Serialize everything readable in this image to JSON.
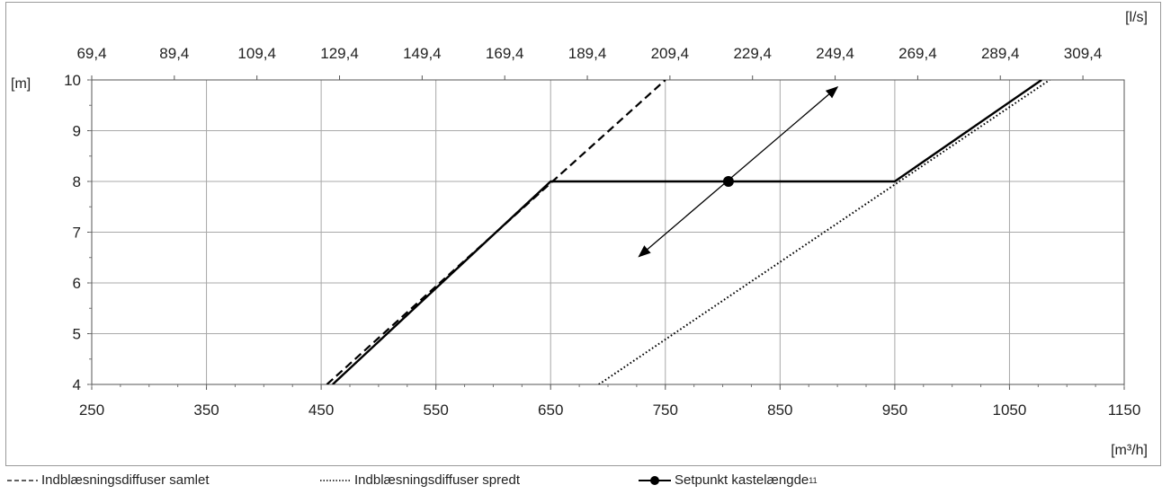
{
  "chart_data": {
    "type": "line",
    "x_axis_bottom": {
      "unit_label": "[m³/h]",
      "range": [
        250,
        1150
      ],
      "ticks": [
        250,
        350,
        450,
        550,
        650,
        750,
        850,
        950,
        1050,
        1150
      ],
      "tick_labels": [
        "250",
        "350",
        "450",
        "550",
        "650",
        "750",
        "850",
        "950",
        "1050",
        "1150"
      ]
    },
    "x_axis_top": {
      "unit_label": "[l/s]",
      "tick_labels": [
        "69,4",
        "89,4",
        "109,4",
        "129,4",
        "149,4",
        "169,4",
        "189,4",
        "209,4",
        "229,4",
        "249,4",
        "269,4",
        "289,4",
        "309,4"
      ],
      "tick_values_m3h": [
        250,
        322,
        394,
        466,
        538,
        610,
        682,
        754,
        826,
        898,
        970,
        1042,
        1114
      ]
    },
    "y_axis": {
      "unit_label": "[m]",
      "range": [
        4,
        10
      ],
      "ticks": [
        4,
        5,
        6,
        7,
        8,
        9,
        10
      ],
      "tick_labels": [
        "4",
        "5",
        "6",
        "7",
        "8",
        "9",
        "10"
      ]
    },
    "grid": true,
    "legend_position": "bottom",
    "series": [
      {
        "name": "Indblæsningsdiffuser samlet",
        "style": "dashed",
        "color": "#000000",
        "points": [
          [
            455,
            4
          ],
          [
            750,
            10
          ]
        ]
      },
      {
        "name": "Indblæsningsdiffuser spredt",
        "style": "dotted",
        "color": "#000000",
        "points": [
          [
            692,
            4
          ],
          [
            1085,
            10
          ]
        ]
      },
      {
        "name": "Setpunkt kastelængde",
        "name_superscript": "11",
        "style": "solid",
        "color": "#000000",
        "points": [
          [
            460,
            4
          ],
          [
            650,
            8
          ],
          [
            950,
            8
          ],
          [
            1078,
            10
          ]
        ],
        "setpoint": [
          805,
          8
        ]
      }
    ],
    "arrow": {
      "from": [
        727,
        6.52
      ],
      "to": [
        900,
        9.86
      ],
      "double_headed": true
    }
  }
}
